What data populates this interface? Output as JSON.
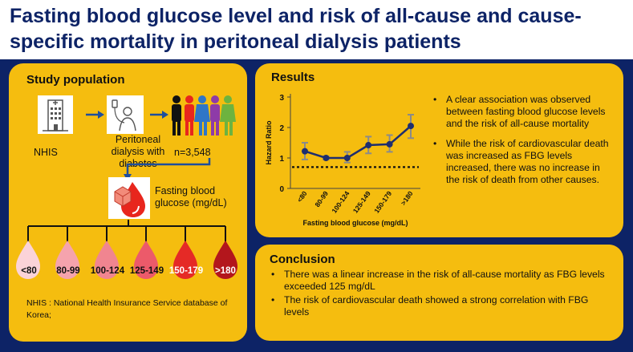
{
  "title": "Fasting blood glucose level and risk of all-cause and cause-specific mortality in peritoneal dialysis patients",
  "study": {
    "heading": "Study population",
    "nhis_label": "NHIS",
    "pd_label": "Peritoneal dialysis with diabetes",
    "n_label": "n=3,548",
    "fbg_label": "Fasting blood glucose (mg/dL)",
    "groups": [
      "<80",
      "80-99",
      "100-124",
      "125-149",
      "150-179",
      ">180"
    ],
    "footnote": "NHIS : National Health Insurance Service database of Korea;"
  },
  "results": {
    "heading": "Results",
    "bullets": [
      "A clear association was observed between fasting blood glucose levels and the risk of all-cause mortality",
      "While the risk of cardiovascular death was increased as FBG levels increased, there was no increase in the risk of death from other causes."
    ]
  },
  "conclusion": {
    "heading": "Conclusion",
    "bullets": [
      "There was a linear increase in the risk of all-cause mortality as FBG levels exceeded 125 mg/dL",
      "The risk of cardiovascular death showed a strong correlation with FBG levels"
    ]
  },
  "colors": {
    "navy": "#0d2366",
    "panel": "#f5bd0f",
    "drops": [
      "#fbd3d8",
      "#f5a3ad",
      "#f08590",
      "#ec5a6a",
      "#e52a26",
      "#b3161c"
    ]
  },
  "chart_data": {
    "type": "line",
    "categories": [
      "<80",
      "80-99",
      "100-124",
      "125-149",
      "150-179",
      ">180"
    ],
    "series": [
      {
        "values": [
          1.22,
          1.0,
          1.0,
          1.42,
          1.45,
          2.05
        ],
        "ci_low": [
          0.95,
          0.95,
          0.85,
          1.15,
          1.2,
          1.65
        ],
        "ci_high": [
          1.5,
          1.05,
          1.2,
          1.7,
          1.75,
          2.42
        ]
      }
    ],
    "reference_line": 0.7,
    "xlabel": "Fasting blood glucose (mg/dL)",
    "ylabel": "Hazard Ratio",
    "yticks": [
      0,
      1,
      2,
      3
    ],
    "ylim": [
      0,
      3
    ]
  }
}
